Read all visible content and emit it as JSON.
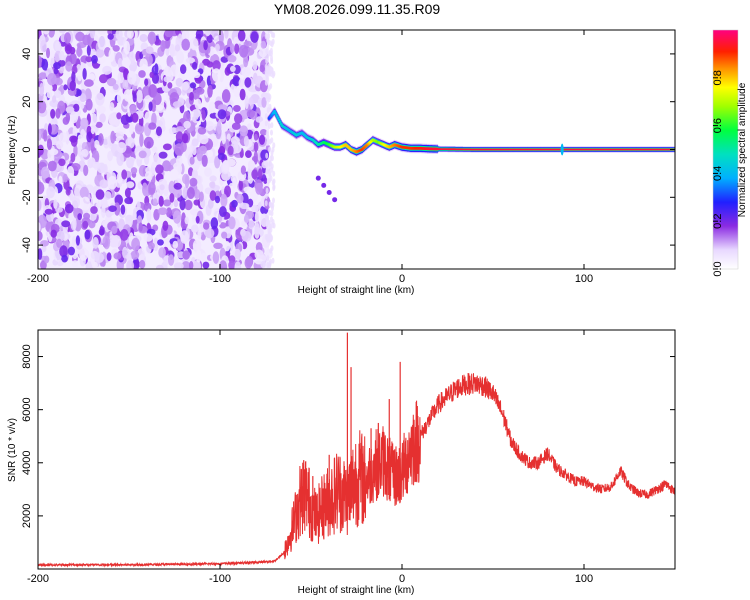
{
  "chart_data": [
    {
      "type": "heatmap",
      "title": "YM08.2026.099.11.35.R09",
      "xlabel": "Height of straight line (km)",
      "ylabel": "Frequency (Hz)",
      "xlim": [
        -200,
        150
      ],
      "ylim": [
        -50,
        50
      ],
      "xticks": [
        -200,
        -100,
        0,
        100
      ],
      "xtick_labels": [
        "-200",
        "-100",
        "0",
        "100"
      ],
      "yticks": [
        -40,
        -20,
        0,
        20,
        40
      ],
      "ytick_labels": [
        "-40",
        "-20",
        "0",
        "20",
        "40"
      ],
      "colorbar": {
        "label": "Normalized spectral amplitude",
        "range": [
          0,
          1
        ],
        "ticks": [
          0.0,
          0.2,
          0.4,
          0.6,
          0.8
        ],
        "tick_labels": [
          "0.0",
          "0.2",
          "0.4",
          "0.6",
          "0.8"
        ]
      },
      "noise_region_x": [
        -200,
        -73
      ],
      "ridge": {
        "x": [
          -73,
          -70,
          -66,
          -62,
          -58,
          -55,
          -52,
          -49,
          -46,
          -43,
          -40,
          -37,
          -34,
          -31,
          -28,
          -25,
          -22,
          -19,
          -16,
          -13,
          -10,
          -7,
          -4,
          0,
          5,
          10,
          15,
          20,
          40,
          60,
          80,
          100,
          120,
          150
        ],
        "y": [
          13,
          16,
          10,
          8,
          6,
          7,
          5,
          4,
          2,
          3,
          2,
          1,
          1,
          2,
          0,
          -1,
          0,
          2,
          4,
          3,
          2,
          1,
          2,
          1,
          0.5,
          0.5,
          0.3,
          0.2,
          0,
          0,
          0,
          0,
          0,
          0
        ],
        "amplitude": [
          0.3,
          0.4,
          0.45,
          0.4,
          0.45,
          0.4,
          0.42,
          0.45,
          0.5,
          0.55,
          0.6,
          0.7,
          0.75,
          0.8,
          0.8,
          0.85,
          0.9,
          0.85,
          0.7,
          0.65,
          0.75,
          0.8,
          0.85,
          0.9,
          0.9,
          0.92,
          0.95,
          0.95,
          0.95,
          0.95,
          0.95,
          0.95,
          0.95,
          0.95
        ]
      },
      "side_blobs": {
        "x": [
          -46,
          -43,
          -40,
          -37
        ],
        "y": [
          -12,
          -15,
          -18,
          -21
        ]
      }
    },
    {
      "type": "line",
      "xlabel": "Height of straight line (km)",
      "ylabel": "SNR (10 * v/v)",
      "xlim": [
        -200,
        150
      ],
      "ylim": [
        0,
        9000
      ],
      "xticks": [
        -200,
        -100,
        0,
        100
      ],
      "xtick_labels": [
        "-200",
        "-100",
        "0",
        "100"
      ],
      "yticks": [
        2000,
        4000,
        6000,
        8000
      ],
      "ytick_labels": [
        "2000",
        "4000",
        "6000",
        "8000"
      ],
      "color": "#e53030",
      "envelope": {
        "x": [
          -200,
          -180,
          -160,
          -140,
          -120,
          -100,
          -90,
          -80,
          -70,
          -65,
          -60,
          -56,
          -53,
          -50,
          -47,
          -44,
          -40,
          -35,
          -30,
          -25,
          -20,
          -15,
          -10,
          -5,
          0,
          5,
          10,
          15,
          20,
          25,
          30,
          35,
          40,
          45,
          50,
          55,
          60,
          65,
          70,
          75,
          80,
          85,
          90,
          95,
          100,
          105,
          110,
          115,
          120,
          125,
          130,
          135,
          140,
          145,
          150
        ],
        "y": [
          150,
          160,
          150,
          170,
          180,
          200,
          220,
          250,
          300,
          600,
          1600,
          2600,
          2900,
          2300,
          1900,
          2300,
          2600,
          3000,
          2700,
          3500,
          3300,
          3900,
          4100,
          3500,
          3600,
          4600,
          5000,
          5600,
          6200,
          6500,
          6800,
          6950,
          7000,
          6900,
          6600,
          5900,
          4800,
          4300,
          4000,
          4000,
          4350,
          3800,
          3550,
          3300,
          3300,
          3100,
          3000,
          3100,
          3700,
          3100,
          2850,
          2800,
          3000,
          3200,
          2900
        ]
      },
      "spikes": {
        "x": [
          -54,
          -51,
          -49,
          -40,
          -30,
          -28,
          -17,
          -13,
          -7,
          -1
        ],
        "y": [
          4100,
          3800,
          3500,
          4300,
          8900,
          7600,
          5300,
          5500,
          6400,
          7800
        ]
      }
    }
  ]
}
